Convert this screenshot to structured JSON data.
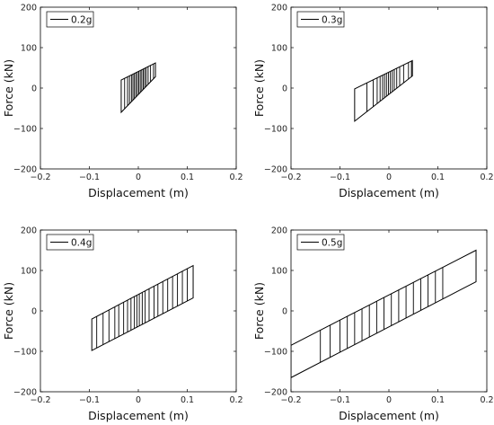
{
  "chart_data": [
    {
      "type": "line",
      "xlabel": "Displacement (m)",
      "ylabel": "Force (kN)",
      "xlim": [
        -0.2,
        0.2
      ],
      "ylim": [
        -200,
        200
      ],
      "xticks": [
        "−0.2",
        "−0.1",
        "0",
        "0.1",
        "0.2"
      ],
      "yticks": [
        "200",
        "100",
        "0",
        "−100",
        "−200"
      ],
      "grid": false,
      "legend_position": "top-left",
      "series": [
        {
          "name": "0.2g",
          "color": "#000000",
          "loop": [
            [
              -0.035,
              -60
            ],
            [
              0.035,
              28
            ],
            [
              0.035,
              62
            ],
            [
              -0.035,
              20
            ]
          ],
          "vlines": [
            -0.028,
            -0.022,
            -0.018,
            -0.014,
            -0.011,
            -0.008,
            -0.005,
            -0.002,
            0.001,
            0.004,
            0.007,
            0.01,
            0.013,
            0.016,
            0.02,
            0.025,
            0.031
          ]
        }
      ]
    },
    {
      "type": "line",
      "xlabel": "Displacement (m)",
      "ylabel": "Force (kN)",
      "xlim": [
        -0.2,
        0.2
      ],
      "ylim": [
        -200,
        200
      ],
      "xticks": [
        "−0.2",
        "−0.1",
        "0",
        "0.1",
        "0.2"
      ],
      "yticks": [
        "200",
        "100",
        "0",
        "−100",
        "−200"
      ],
      "grid": false,
      "legend_position": "top-left",
      "series": [
        {
          "name": "0.3g",
          "color": "#000000",
          "loop": [
            [
              -0.07,
              -82
            ],
            [
              0.048,
              30
            ],
            [
              0.048,
              68
            ],
            [
              -0.07,
              -2
            ]
          ],
          "vlines": [
            -0.045,
            -0.032,
            -0.024,
            -0.018,
            -0.013,
            -0.009,
            -0.005,
            -0.001,
            0.003,
            0.007,
            0.011,
            0.016,
            0.022,
            0.03,
            0.04,
            0.046
          ]
        }
      ]
    },
    {
      "type": "line",
      "xlabel": "Displacement (m)",
      "ylabel": "Force (kN)",
      "xlim": [
        -0.2,
        0.2
      ],
      "ylim": [
        -200,
        200
      ],
      "xticks": [
        "−0.2",
        "−0.1",
        "0",
        "0.1",
        "0.2"
      ],
      "yticks": [
        "200",
        "100",
        "0",
        "−100",
        "−200"
      ],
      "grid": false,
      "legend_position": "top-left",
      "series": [
        {
          "name": "0.4g",
          "color": "#000000",
          "loop": [
            [
              -0.095,
              -98
            ],
            [
              0.112,
              32
            ],
            [
              0.112,
              112
            ],
            [
              -0.095,
              -20
            ]
          ],
          "vlines": [
            -0.085,
            -0.072,
            -0.06,
            -0.048,
            -0.04,
            -0.03,
            -0.022,
            -0.015,
            -0.008,
            -0.003,
            0.002,
            0.008,
            0.014,
            0.022,
            0.032,
            0.04,
            0.05,
            0.06,
            0.07,
            0.08,
            0.09,
            0.1
          ]
        }
      ]
    },
    {
      "type": "line",
      "xlabel": "Displacement (m)",
      "ylabel": "Force (kN)",
      "xlim": [
        -0.2,
        0.2
      ],
      "ylim": [
        -200,
        200
      ],
      "xticks": [
        "−0.2",
        "−0.1",
        "0",
        "0.1",
        "0.2"
      ],
      "yticks": [
        "200",
        "100",
        "0",
        "−100",
        "−200"
      ],
      "grid": false,
      "legend_position": "top-left",
      "series": [
        {
          "name": "0.5g",
          "color": "#000000",
          "loop": [
            [
              -0.2,
              -165
            ],
            [
              0.178,
              72
            ],
            [
              0.178,
              150
            ],
            [
              -0.2,
              -85
            ]
          ],
          "vlines": [
            -0.14,
            -0.12,
            -0.1,
            -0.085,
            -0.07,
            -0.055,
            -0.04,
            -0.025,
            -0.01,
            0.005,
            0.02,
            0.035,
            0.05,
            0.065,
            0.08,
            0.095,
            0.11
          ]
        }
      ]
    }
  ]
}
